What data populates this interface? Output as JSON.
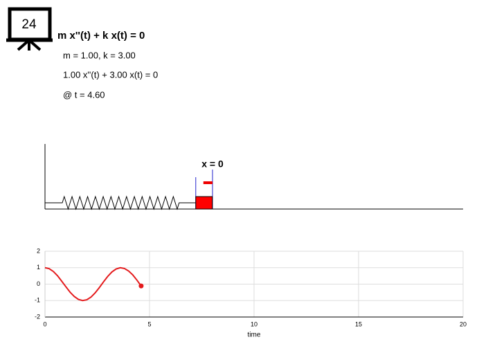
{
  "badge": "24",
  "equation": "m x''(t) + k x(t) = 0",
  "params": "m = 1.00, k = 3.00",
  "instance": "1.00 x''(t) + 3.00 x(t) = 0",
  "time_label": "@ t = 4.60",
  "spring_label": "x = 0",
  "chart_data": {
    "type": "line",
    "x_label": "time",
    "xlim": [
      0,
      20
    ],
    "xticks": [
      0,
      5,
      10,
      15,
      20
    ],
    "ylim": [
      -2,
      2
    ],
    "yticks": [
      -2,
      -1,
      0,
      1,
      2
    ],
    "grid": true,
    "series": [
      {
        "color": "#e41a1c",
        "x": [
          0,
          0.2,
          0.4,
          0.6,
          0.8,
          1.0,
          1.2,
          1.4,
          1.6,
          1.8,
          2.0,
          2.2,
          2.4,
          2.6,
          2.8,
          3.0,
          3.2,
          3.4,
          3.6,
          3.8,
          4.0,
          4.2,
          4.4,
          4.6
        ],
        "values": [
          1,
          0.94,
          0.77,
          0.51,
          0.18,
          -0.16,
          -0.49,
          -0.75,
          -0.93,
          -1.0,
          -0.95,
          -0.79,
          -0.53,
          -0.21,
          0.14,
          0.47,
          0.74,
          0.92,
          1.0,
          0.95,
          0.8,
          0.56,
          0.24,
          -0.11
        ]
      }
    ]
  }
}
